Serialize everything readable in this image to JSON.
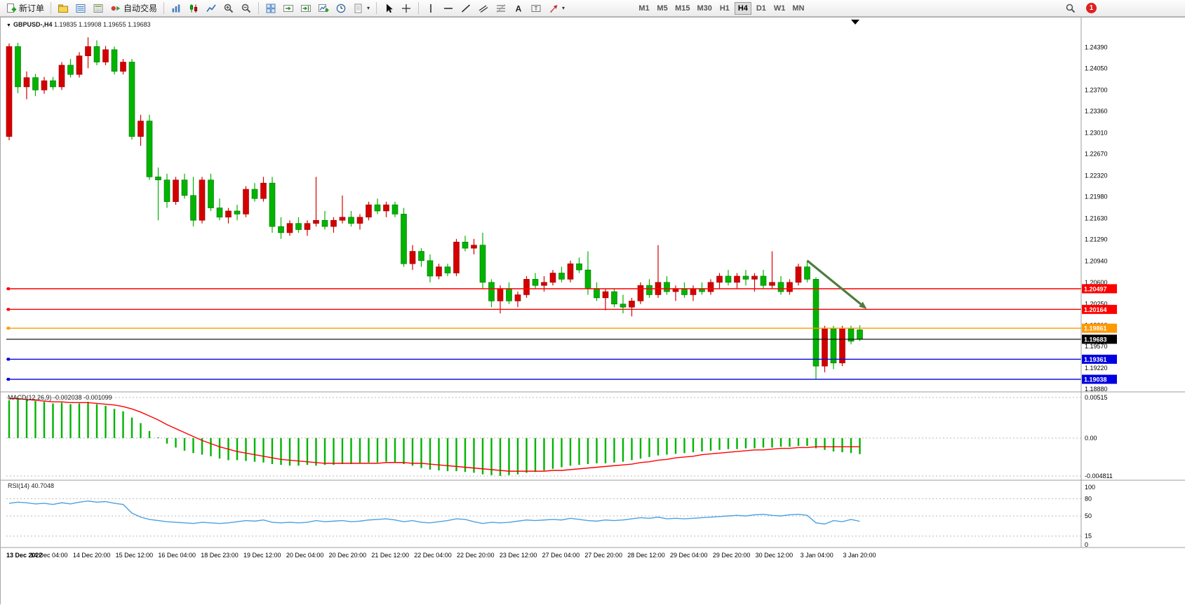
{
  "toolbar": {
    "new_order": "新订单",
    "autotrading": "自动交易",
    "timeframes": [
      "M1",
      "M5",
      "M15",
      "M30",
      "H1",
      "H4",
      "D1",
      "W1",
      "MN"
    ],
    "active_timeframe": "H4",
    "badge": "1"
  },
  "chart": {
    "symbol_period": "GBPUSD-,H4",
    "ohlc": "1.19835 1.19908 1.19655 1.19683",
    "macd_label": "MACD(12,26,9)",
    "macd_values": "-0.002038 -0.001099",
    "rsi_label": "RSI(14)",
    "rsi_value": "40.7048"
  },
  "chart_data": {
    "type": "candlestick",
    "symbol": "GBPUSD-",
    "period": "H4",
    "colors": {
      "up": "#d40000",
      "up_stroke": "#8f0000",
      "down": "#00b400",
      "down_stroke": "#006e00",
      "macd_hist": "#00b400",
      "macd_signal": "#ff0000",
      "rsi": "#4da1e0",
      "grid_dash": "#b9b9b9",
      "line_red": "#ff0000",
      "line_orange": "#ff9900",
      "line_blue": "#0000e0",
      "line_black": "#000000"
    },
    "price_axis": [
      "1.24390",
      "1.24050",
      "1.23700",
      "1.23360",
      "1.23010",
      "1.22670",
      "1.22320",
      "1.21980",
      "1.21630",
      "1.21290",
      "1.20940",
      "1.20600",
      "1.20250",
      "1.19910",
      "1.19570",
      "1.19220",
      "1.18880"
    ],
    "h_lines": [
      {
        "price": 1.20497,
        "label": "1.20497",
        "color": "#ff0000"
      },
      {
        "price": 1.20164,
        "label": "1.20164",
        "color": "#ff0000"
      },
      {
        "price": 1.19861,
        "label": "1.19861",
        "color": "#ff9900"
      },
      {
        "price": 1.19683,
        "label": "1.19683",
        "color": "#000000",
        "is_current": true
      },
      {
        "price": 1.19361,
        "label": "1.19361",
        "color": "#0000e0"
      },
      {
        "price": 1.19038,
        "label": "1.19038",
        "color": "#0000e0"
      }
    ],
    "candles": [
      [
        1.2295,
        1.2445,
        1.2289,
        1.244
      ],
      [
        1.244,
        1.2446,
        1.2365,
        1.2375
      ],
      [
        1.2375,
        1.24,
        1.2355,
        1.239
      ],
      [
        1.239,
        1.2396,
        1.236,
        1.237
      ],
      [
        1.237,
        1.2391,
        1.2364,
        1.2385
      ],
      [
        1.2385,
        1.2391,
        1.237,
        1.2375
      ],
      [
        1.2375,
        1.2415,
        1.237,
        1.241
      ],
      [
        1.241,
        1.242,
        1.239,
        1.2395
      ],
      [
        1.2395,
        1.2431,
        1.239,
        1.2425
      ],
      [
        1.2425,
        1.2455,
        1.2405,
        1.244
      ],
      [
        1.244,
        1.245,
        1.241,
        1.2415
      ],
      [
        1.2415,
        1.2441,
        1.241,
        1.2435
      ],
      [
        1.2435,
        1.244,
        1.2395,
        1.24
      ],
      [
        1.24,
        1.242,
        1.2395,
        1.2415
      ],
      [
        1.2415,
        1.242,
        1.229,
        1.2295
      ],
      [
        1.2295,
        1.233,
        1.228,
        1.232
      ],
      [
        1.232,
        1.233,
        1.2225,
        1.223
      ],
      [
        1.223,
        1.2245,
        1.216,
        1.2225
      ],
      [
        1.2225,
        1.2235,
        1.218,
        1.219
      ],
      [
        1.219,
        1.223,
        1.2185,
        1.2225
      ],
      [
        1.2225,
        1.2235,
        1.2195,
        1.22
      ],
      [
        1.22,
        1.223,
        1.215,
        1.216
      ],
      [
        1.216,
        1.223,
        1.2155,
        1.2225
      ],
      [
        1.2225,
        1.2235,
        1.2175,
        1.218
      ],
      [
        1.218,
        1.2195,
        1.216,
        1.2165
      ],
      [
        1.2165,
        1.218,
        1.2155,
        1.2175
      ],
      [
        1.2175,
        1.2185,
        1.216,
        1.217
      ],
      [
        1.217,
        1.2215,
        1.2165,
        1.221
      ],
      [
        1.221,
        1.222,
        1.219,
        1.2195
      ],
      [
        1.2195,
        1.223,
        1.219,
        1.222
      ],
      [
        1.222,
        1.223,
        1.214,
        1.215
      ],
      [
        1.215,
        1.2165,
        1.213,
        1.214
      ],
      [
        1.214,
        1.216,
        1.2135,
        1.2155
      ],
      [
        1.2155,
        1.2165,
        1.214,
        1.2145
      ],
      [
        1.2145,
        1.216,
        1.2135,
        1.2155
      ],
      [
        1.2155,
        1.223,
        1.215,
        1.216
      ],
      [
        1.216,
        1.2175,
        1.2145,
        1.215
      ],
      [
        1.215,
        1.2165,
        1.214,
        1.216
      ],
      [
        1.216,
        1.22,
        1.2155,
        1.2165
      ],
      [
        1.2165,
        1.2175,
        1.215,
        1.2155
      ],
      [
        1.2155,
        1.217,
        1.2145,
        1.2165
      ],
      [
        1.2165,
        1.219,
        1.216,
        1.2185
      ],
      [
        1.2185,
        1.2195,
        1.217,
        1.2175
      ],
      [
        1.2175,
        1.219,
        1.2165,
        1.2185
      ],
      [
        1.2185,
        1.219,
        1.2165,
        1.217
      ],
      [
        1.217,
        1.218,
        1.2085,
        1.209
      ],
      [
        1.209,
        1.212,
        1.208,
        1.211
      ],
      [
        1.211,
        1.2115,
        1.2085,
        1.2095
      ],
      [
        1.2095,
        1.2105,
        1.206,
        1.207
      ],
      [
        1.207,
        1.209,
        1.2065,
        1.2085
      ],
      [
        1.2085,
        1.209,
        1.207,
        1.2075
      ],
      [
        1.2075,
        1.213,
        1.207,
        1.2125
      ],
      [
        1.2125,
        1.2135,
        1.211,
        1.2115
      ],
      [
        1.2115,
        1.213,
        1.2105,
        1.212
      ],
      [
        1.212,
        1.214,
        1.205,
        1.206
      ],
      [
        1.206,
        1.2065,
        1.202,
        1.203
      ],
      [
        1.203,
        1.2055,
        1.201,
        1.205
      ],
      [
        1.205,
        1.206,
        1.2025,
        1.203
      ],
      [
        1.203,
        1.2045,
        1.202,
        1.204
      ],
      [
        1.204,
        1.207,
        1.2035,
        1.2065
      ],
      [
        1.2065,
        1.2075,
        1.205,
        1.2055
      ],
      [
        1.2055,
        1.207,
        1.2045,
        1.206
      ],
      [
        1.206,
        1.208,
        1.2055,
        1.2075
      ],
      [
        1.2075,
        1.2085,
        1.206,
        1.2065
      ],
      [
        1.2065,
        1.2095,
        1.206,
        1.209
      ],
      [
        1.209,
        1.21,
        1.2075,
        1.208
      ],
      [
        1.208,
        1.211,
        1.204,
        1.205
      ],
      [
        1.205,
        1.206,
        1.203,
        1.2035
      ],
      [
        1.2035,
        1.205,
        1.2015,
        1.2045
      ],
      [
        1.2045,
        1.205,
        1.202,
        1.2025
      ],
      [
        1.2025,
        1.204,
        1.201,
        1.202
      ],
      [
        1.202,
        1.2035,
        1.2005,
        1.203
      ],
      [
        1.203,
        1.206,
        1.2025,
        1.2055
      ],
      [
        1.2055,
        1.2065,
        1.2035,
        1.204
      ],
      [
        1.204,
        1.212,
        1.2035,
        1.206
      ],
      [
        1.206,
        1.207,
        1.204,
        1.2045
      ],
      [
        1.2045,
        1.2055,
        1.203,
        1.205
      ],
      [
        1.205,
        1.206,
        1.2035,
        1.204
      ],
      [
        1.204,
        1.2055,
        1.203,
        1.205
      ],
      [
        1.205,
        1.206,
        1.204,
        1.2045
      ],
      [
        1.2045,
        1.2065,
        1.204,
        1.206
      ],
      [
        1.206,
        1.2075,
        1.205,
        1.207
      ],
      [
        1.207,
        1.208,
        1.2055,
        1.206
      ],
      [
        1.206,
        1.2075,
        1.205,
        1.207
      ],
      [
        1.207,
        1.208,
        1.2055,
        1.2065
      ],
      [
        1.2065,
        1.2075,
        1.2045,
        1.207
      ],
      [
        1.207,
        1.208,
        1.205,
        1.2055
      ],
      [
        1.2055,
        1.211,
        1.205,
        1.206
      ],
      [
        1.206,
        1.207,
        1.204,
        1.2045
      ],
      [
        1.2045,
        1.2065,
        1.204,
        1.206
      ],
      [
        1.206,
        1.209,
        1.2055,
        1.2085
      ],
      [
        1.2085,
        1.2095,
        1.206,
        1.2065
      ],
      [
        1.2065,
        1.2068,
        1.1904,
        1.1925
      ],
      [
        1.1925,
        1.199,
        1.1915,
        1.1985
      ],
      [
        1.1985,
        1.199,
        1.192,
        1.193
      ],
      [
        1.193,
        1.199,
        1.1925,
        1.1985
      ],
      [
        1.1985,
        1.199,
        1.196,
        1.1965
      ],
      [
        1.19835,
        1.19908,
        1.19655,
        1.19683
      ]
    ],
    "time_labels": [
      "13 Dec 2022",
      "14 Dec 04:00",
      "14 Dec 20:00",
      "15 Dec 12:00",
      "16 Dec 04:00",
      "18 Dec 23:00",
      "19 Dec 12:00",
      "20 Dec 04:00",
      "20 Dec 20:00",
      "21 Dec 12:00",
      "22 Dec 04:00",
      "22 Dec 20:00",
      "23 Dec 12:00",
      "27 Dec 04:00",
      "27 Dec 20:00",
      "28 Dec 12:00",
      "29 Dec 04:00",
      "29 Dec 20:00",
      "30 Dec 12:00",
      "3 Jan 04:00",
      "3 Jan 20:00"
    ],
    "macd": {
      "params": "12,26,9",
      "current_macd": -0.002038,
      "current_signal": -0.001099,
      "axis": [
        "0.00515",
        "0.00",
        "-0.004811"
      ],
      "hist": [
        0.0048,
        0.005,
        0.0049,
        0.0047,
        0.0046,
        0.0044,
        0.0045,
        0.0043,
        0.0044,
        0.0046,
        0.0043,
        0.0041,
        0.0037,
        0.0034,
        0.0026,
        0.0019,
        0.0009,
        0.0001,
        -0.0007,
        -0.0012,
        -0.0016,
        -0.0019,
        -0.0021,
        -0.0023,
        -0.0026,
        -0.0028,
        -0.0028,
        -0.0029,
        -0.003,
        -0.0031,
        -0.0033,
        -0.0034,
        -0.0035,
        -0.0035,
        -0.0034,
        -0.0035,
        -0.0034,
        -0.0034,
        -0.0033,
        -0.0033,
        -0.0032,
        -0.0031,
        -0.0031,
        -0.003,
        -0.0031,
        -0.0033,
        -0.0035,
        -0.0038,
        -0.004,
        -0.0041,
        -0.0042,
        -0.0042,
        -0.0043,
        -0.0044,
        -0.0046,
        -0.0047,
        -0.0048,
        -0.0047,
        -0.0046,
        -0.0044,
        -0.0043,
        -0.0041,
        -0.0039,
        -0.0037,
        -0.0035,
        -0.0034,
        -0.0033,
        -0.0032,
        -0.0032,
        -0.0031,
        -0.003,
        -0.0028,
        -0.0026,
        -0.0024,
        -0.0022,
        -0.0021,
        -0.002,
        -0.0019,
        -0.0018,
        -0.0017,
        -0.0016,
        -0.0015,
        -0.0014,
        -0.0014,
        -0.0013,
        -0.0013,
        -0.0012,
        -0.0012,
        -0.0011,
        -0.0011,
        -0.001,
        -0.001,
        -0.0013,
        -0.0015,
        -0.0017,
        -0.0018,
        -0.0019,
        -0.002038
      ],
      "signal": [
        0.005,
        0.005,
        0.0049,
        0.0048,
        0.0047,
        0.0046,
        0.0046,
        0.0045,
        0.0045,
        0.0045,
        0.0044,
        0.0043,
        0.0042,
        0.004,
        0.0037,
        0.0033,
        0.0028,
        0.0023,
        0.0017,
        0.0012,
        0.0007,
        0.0002,
        -0.0003,
        -0.0007,
        -0.0011,
        -0.0014,
        -0.0017,
        -0.0019,
        -0.0021,
        -0.0023,
        -0.0025,
        -0.0027,
        -0.0028,
        -0.0029,
        -0.003,
        -0.0031,
        -0.0032,
        -0.0032,
        -0.0032,
        -0.0032,
        -0.0032,
        -0.0032,
        -0.0032,
        -0.0031,
        -0.0031,
        -0.0031,
        -0.0032,
        -0.0032,
        -0.0033,
        -0.0034,
        -0.0035,
        -0.0036,
        -0.0037,
        -0.0038,
        -0.0039,
        -0.004,
        -0.0041,
        -0.0042,
        -0.0042,
        -0.0042,
        -0.0042,
        -0.0042,
        -0.0041,
        -0.0041,
        -0.004,
        -0.0039,
        -0.0038,
        -0.0037,
        -0.0036,
        -0.0035,
        -0.0034,
        -0.0033,
        -0.0031,
        -0.003,
        -0.0028,
        -0.0027,
        -0.0025,
        -0.0024,
        -0.0023,
        -0.0021,
        -0.002,
        -0.0019,
        -0.0018,
        -0.0017,
        -0.0016,
        -0.0015,
        -0.0015,
        -0.0014,
        -0.0013,
        -0.0013,
        -0.0012,
        -0.0012,
        -0.0011,
        -0.0011,
        -0.0011,
        -0.0011,
        -0.0011,
        -0.001099
      ]
    },
    "rsi": {
      "period": 14,
      "current": 40.7048,
      "axis": [
        "100",
        "80",
        "50",
        "15",
        "0"
      ],
      "level_lines": [
        80,
        50,
        15
      ],
      "values": [
        72,
        74,
        73,
        71,
        72,
        70,
        73,
        71,
        74,
        76,
        74,
        75,
        72,
        70,
        55,
        48,
        44,
        42,
        40,
        39,
        38,
        37,
        39,
        38,
        37,
        38,
        40,
        42,
        41,
        43,
        39,
        38,
        39,
        38,
        39,
        42,
        40,
        41,
        42,
        40,
        41,
        43,
        44,
        45,
        43,
        40,
        42,
        39,
        38,
        40,
        42,
        45,
        44,
        40,
        37,
        39,
        38,
        39,
        41,
        43,
        42,
        43,
        44,
        43,
        46,
        44,
        42,
        41,
        43,
        42,
        43,
        45,
        47,
        46,
        48,
        45,
        46,
        45,
        46,
        47,
        48,
        49,
        50,
        51,
        50,
        52,
        53,
        51,
        50,
        52,
        53,
        51,
        38,
        36,
        42,
        40,
        44,
        40.7
      ]
    },
    "trend_arrow": {
      "from_candle": 91,
      "from_price": 1.2095,
      "to_candle": 97.8,
      "to_price": 1.2017,
      "color": "#4e7d3e"
    }
  }
}
